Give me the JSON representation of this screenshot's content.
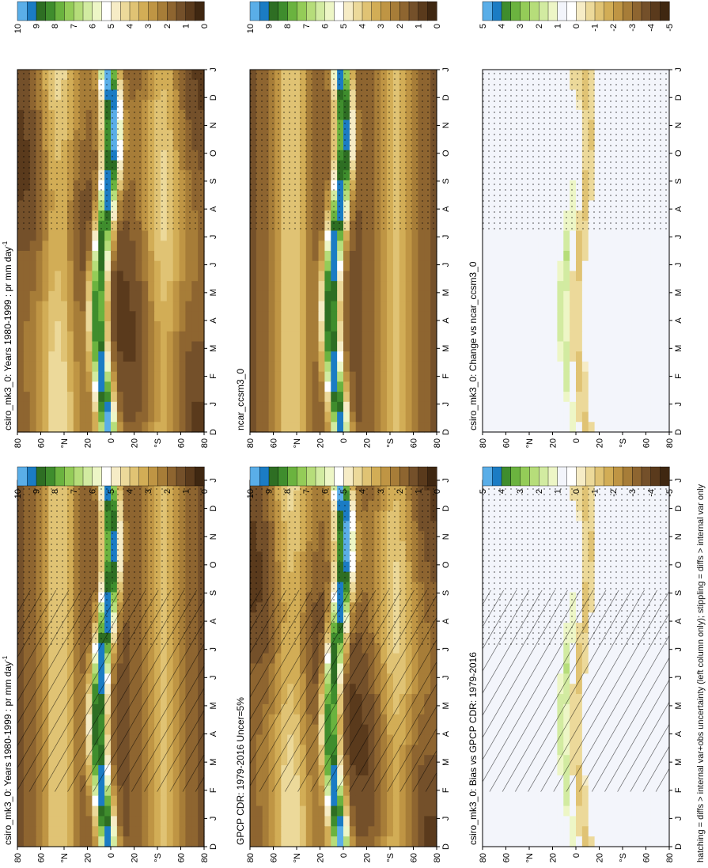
{
  "footnote": "hatching = diffs > internal var+obs uncertainty (left column only); stippling = diffs > internal var only",
  "colors": {
    "abs_scale": [
      "#3f2711",
      "#5a3a1c",
      "#74502a",
      "#8e6530",
      "#a77d38",
      "#bf9544",
      "#d2ad56",
      "#e0c374",
      "#ecd99a",
      "#f6ecc6",
      "#ffffff",
      "#edf6c6",
      "#d2eba1",
      "#b6dd7a",
      "#94cc58",
      "#6bb33f",
      "#3f8d2d",
      "#2e6e23",
      "#1b7cc4",
      "#5aaee8"
    ],
    "diff_scale": [
      "#3f2711",
      "#5a3a1c",
      "#74502a",
      "#8e6530",
      "#a77d38",
      "#bf9544",
      "#d2ad56",
      "#e0c374",
      "#ecd99a",
      "#f6ecc6",
      "#ffffff",
      "#f3f5fb",
      "#edf6c6",
      "#d2eba1",
      "#b6dd7a",
      "#94cc58",
      "#6bb33f",
      "#3f8d2d",
      "#1b7cc4",
      "#5aaee8"
    ],
    "diff_bg": "#f3f5fb"
  },
  "chart_data": [
    {
      "type": "heatmap",
      "title": "csiro_mk3_0: Years 1980-1999 : pr mm day",
      "title_sup": "-1",
      "x_ticks": [
        "D",
        "J",
        "F",
        "M",
        "A",
        "M",
        "J",
        "J",
        "A",
        "S",
        "O",
        "N",
        "D",
        "J"
      ],
      "y_ticks": [
        "80",
        "60",
        "°N",
        "20",
        "0",
        "20",
        "°S",
        "60",
        "80"
      ],
      "colorbar_ticks": [
        "10",
        "9",
        "8",
        "7",
        "6",
        "5",
        "4",
        "3",
        "2",
        "1",
        "0"
      ],
      "hatching": true,
      "stippling": true,
      "variant": "abs"
    },
    {
      "type": "heatmap",
      "title": "GPCP CDR: 1979-2016 Uncer=5%",
      "title_sup": "",
      "x_ticks": [
        "D",
        "J",
        "F",
        "M",
        "A",
        "M",
        "J",
        "J",
        "A",
        "S",
        "O",
        "N",
        "D",
        "J"
      ],
      "y_ticks": [
        "80",
        "60",
        "°N",
        "20",
        "0",
        "20",
        "°S",
        "60",
        "80"
      ],
      "colorbar_ticks": [
        "10",
        "9",
        "8",
        "7",
        "6",
        "5",
        "4",
        "3",
        "2",
        "1",
        "0"
      ],
      "hatching": true,
      "stippling": true,
      "variant": "abs"
    },
    {
      "type": "heatmap",
      "title": "csiro_mk3_0: Bias vs GPCP CDR: 1979-2016",
      "title_sup": "",
      "x_ticks": [
        "D",
        "J",
        "F",
        "M",
        "A",
        "M",
        "J",
        "J",
        "A",
        "S",
        "O",
        "N",
        "D",
        "J"
      ],
      "y_ticks": [
        "80",
        "60",
        "°N",
        "20",
        "0",
        "20",
        "°S",
        "60",
        "80"
      ],
      "colorbar_ticks": [
        "5",
        "4",
        "3",
        "2",
        "1",
        "0",
        "-1",
        "-2",
        "-3",
        "-4",
        "-5"
      ],
      "hatching": true,
      "stippling": true,
      "variant": "diff"
    },
    {
      "type": "heatmap",
      "title": "csiro_mk3_0: Years 1980-1999 : pr mm day",
      "title_sup": "-1",
      "x_ticks": [
        "D",
        "J",
        "F",
        "M",
        "A",
        "M",
        "J",
        "J",
        "A",
        "S",
        "O",
        "N",
        "D",
        "J"
      ],
      "y_ticks": [
        "80",
        "60",
        "°N",
        "20",
        "0",
        "20",
        "°S",
        "60",
        "80"
      ],
      "colorbar_ticks": [
        "10",
        "9",
        "8",
        "7",
        "6",
        "5",
        "4",
        "3",
        "2",
        "1",
        "0"
      ],
      "hatching": false,
      "stippling": true,
      "variant": "abs"
    },
    {
      "type": "heatmap",
      "title": "ncar_ccsm3_0",
      "title_sup": "",
      "x_ticks": [
        "D",
        "J",
        "F",
        "M",
        "A",
        "M",
        "J",
        "J",
        "A",
        "S",
        "O",
        "N",
        "D",
        "J"
      ],
      "y_ticks": [
        "80",
        "60",
        "°N",
        "20",
        "0",
        "20",
        "°S",
        "60",
        "80"
      ],
      "colorbar_ticks": [
        "10",
        "9",
        "8",
        "7",
        "6",
        "5",
        "4",
        "3",
        "2",
        "1",
        "0"
      ],
      "hatching": false,
      "stippling": true,
      "variant": "abs"
    },
    {
      "type": "heatmap",
      "title": "csiro_mk3_0: Change vs ncar_ccsm3_0",
      "title_sup": "",
      "x_ticks": [
        "D",
        "J",
        "F",
        "M",
        "A",
        "M",
        "J",
        "J",
        "A",
        "S",
        "O",
        "N",
        "D",
        "J"
      ],
      "y_ticks": [
        "80",
        "60",
        "°N",
        "20",
        "0",
        "20",
        "°S",
        "60",
        "80"
      ],
      "colorbar_ticks": [
        "5",
        "4",
        "3",
        "2",
        "1",
        "0",
        "-1",
        "-2",
        "-3",
        "-4",
        "-5"
      ],
      "hatching": false,
      "stippling": true,
      "variant": "diff"
    }
  ]
}
